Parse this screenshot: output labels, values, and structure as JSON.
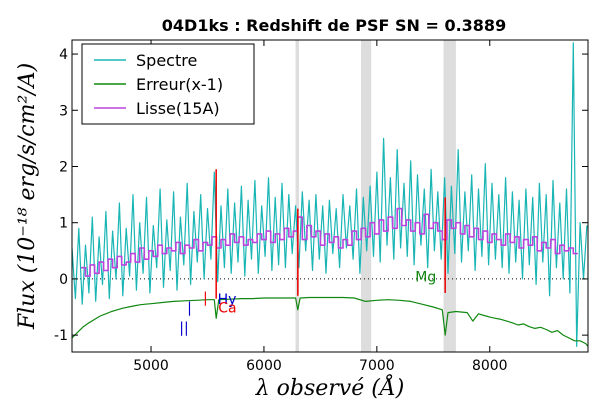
{
  "chart_data": {
    "type": "line",
    "title": "04D1ks : Redshift de PSF SN = 0.3889",
    "xlabel": "λ observé (Å)",
    "ylabel": "Flux (10⁻¹⁸ erg/s/cm²/A)",
    "xlim": [
      4300,
      8870
    ],
    "ylim": [
      -1.3,
      4.25
    ],
    "xticks": [
      5000,
      6000,
      7000,
      8000
    ],
    "yticks": [
      -1,
      0,
      1,
      2,
      3,
      4
    ],
    "xtick_labels": [
      "5000",
      "6000",
      "7000",
      "8000"
    ],
    "ytick_labels": [
      "-1",
      "0",
      "1",
      "2",
      "3",
      "4"
    ],
    "zero_line": {
      "y": 0,
      "style": "dotted",
      "color": "#000000"
    },
    "legend": {
      "placement": "top-left",
      "entries": [
        {
          "label": "Spectre",
          "color": "#19b5b5"
        },
        {
          "label": "Erreur(x-1)",
          "color": "#118811"
        },
        {
          "label": "Lisse(15A)",
          "color": "#bb44dd"
        }
      ]
    },
    "shaded_bands": [
      {
        "x_start": 6280,
        "x_end": 6310,
        "color": "#dddddd"
      },
      {
        "x_start": 6860,
        "x_end": 6950,
        "color": "#dddddd"
      },
      {
        "x_start": 7590,
        "x_end": 7700,
        "color": "#dddddd"
      }
    ],
    "vertical_markers": [
      {
        "x": 5577,
        "y_bottom": -0.35,
        "y_top": 1.95,
        "color": "#ee0000"
      },
      {
        "x": 6300,
        "y_bottom": -0.3,
        "y_top": 1.25,
        "color": "#ee0000"
      },
      {
        "x": 7605,
        "y_bottom": -0.25,
        "y_top": 1.45,
        "color": "#ee0000"
      }
    ],
    "line_labels": [
      {
        "text": "||",
        "x": 5250,
        "y": -0.95,
        "color": "#0000cc"
      },
      {
        "text": "|",
        "x": 5320,
        "y": -0.6,
        "color": "#0000cc"
      },
      {
        "text": "|",
        "x": 5460,
        "y": -0.42,
        "color": "#ee0000"
      },
      {
        "text": "Hy",
        "x": 5590,
        "y": -0.45,
        "color": "#0000cc"
      },
      {
        "text": "Ca",
        "x": 5595,
        "y": -0.6,
        "color": "#ee0000"
      },
      {
        "text": "Mg",
        "x": 7340,
        "y": -0.05,
        "color": "#118811"
      }
    ],
    "series": [
      {
        "name": "Spectre",
        "color": "#19b5b5",
        "x": [
          4300,
          4330,
          4360,
          4390,
          4420,
          4450,
          4480,
          4510,
          4540,
          4570,
          4600,
          4630,
          4660,
          4690,
          4720,
          4750,
          4780,
          4810,
          4840,
          4870,
          4900,
          4930,
          4960,
          4990,
          5020,
          5050,
          5080,
          5110,
          5140,
          5170,
          5200,
          5230,
          5260,
          5290,
          5320,
          5350,
          5380,
          5410,
          5440,
          5470,
          5500,
          5530,
          5560,
          5590,
          5620,
          5650,
          5680,
          5710,
          5740,
          5770,
          5800,
          5830,
          5860,
          5890,
          5920,
          5950,
          5980,
          6010,
          6040,
          6070,
          6100,
          6130,
          6160,
          6190,
          6220,
          6250,
          6280,
          6310,
          6340,
          6370,
          6400,
          6430,
          6460,
          6490,
          6520,
          6550,
          6580,
          6610,
          6640,
          6670,
          6700,
          6730,
          6760,
          6790,
          6820,
          6850,
          6880,
          6910,
          6940,
          6970,
          7000,
          7030,
          7060,
          7090,
          7120,
          7150,
          7180,
          7210,
          7240,
          7270,
          7300,
          7330,
          7360,
          7390,
          7420,
          7450,
          7480,
          7510,
          7540,
          7570,
          7600,
          7630,
          7660,
          7690,
          7720,
          7750,
          7780,
          7810,
          7840,
          7870,
          7900,
          7930,
          7960,
          7990,
          8020,
          8050,
          8080,
          8110,
          8140,
          8170,
          8200,
          8230,
          8260,
          8290,
          8320,
          8350,
          8380,
          8410,
          8440,
          8470,
          8500,
          8530,
          8560,
          8590,
          8620,
          8650,
          8680,
          8710,
          8740,
          8770,
          8800,
          8830,
          8860
        ],
        "y": [
          0.55,
          -0.35,
          0.9,
          -0.45,
          0.6,
          -0.25,
          1.1,
          -0.4,
          0.75,
          -0.1,
          1.2,
          -0.35,
          0.85,
          0.0,
          1.35,
          -0.3,
          0.9,
          0.05,
          1.5,
          -0.2,
          1.0,
          0.1,
          1.45,
          -0.25,
          0.95,
          0.2,
          1.6,
          -0.15,
          1.05,
          0.15,
          1.55,
          -0.2,
          1.1,
          0.25,
          1.7,
          -0.1,
          1.2,
          0.3,
          1.5,
          0.0,
          1.25,
          0.35,
          1.9,
          -0.05,
          1.3,
          0.2,
          1.6,
          0.1,
          1.35,
          0.3,
          1.65,
          0.05,
          1.4,
          0.35,
          1.75,
          0.1,
          1.3,
          0.4,
          1.8,
          0.15,
          1.45,
          0.25,
          1.7,
          0.2,
          1.5,
          0.45,
          1.3,
          0.2,
          1.55,
          0.5,
          1.4,
          0.15,
          1.5,
          0.35,
          1.3,
          0.1,
          1.4,
          0.45,
          1.25,
          0.2,
          1.5,
          0.55,
          1.3,
          0.35,
          1.6,
          0.1,
          1.45,
          0.5,
          1.65,
          0.4,
          1.9,
          0.3,
          2.5,
          0.6,
          1.8,
          0.35,
          2.3,
          0.55,
          1.7,
          0.4,
          2.1,
          0.25,
          1.85,
          0.6,
          1.6,
          0.2,
          1.95,
          0.5,
          1.55,
          0.35,
          1.8,
          0.1,
          1.65,
          0.45,
          2.3,
          0.3,
          1.55,
          0.5,
          1.85,
          0.15,
          1.6,
          0.4,
          2.05,
          0.25,
          1.7,
          0.35,
          1.5,
          0.2,
          1.8,
          0.1,
          1.55,
          0.3,
          1.4,
          0.0,
          1.6,
          0.25,
          1.45,
          -0.1,
          1.7,
          0.3,
          1.5,
          -0.3,
          1.75,
          0.2,
          1.35,
          0.0,
          1.6,
          -0.25,
          4.2,
          -1.2,
          1.0,
          0.0,
          0.95
        ]
      },
      {
        "name": "Erreur(x-1)",
        "color": "#118811",
        "x": [
          4300,
          4350,
          4400,
          4450,
          4500,
          4550,
          4600,
          4650,
          4700,
          4750,
          4800,
          4850,
          4900,
          4950,
          5000,
          5100,
          5200,
          5300,
          5400,
          5500,
          5560,
          5577,
          5600,
          5700,
          5800,
          5900,
          6000,
          6100,
          6200,
          6280,
          6300,
          6320,
          6400,
          6500,
          6600,
          6700,
          6800,
          6900,
          7000,
          7100,
          7200,
          7300,
          7400,
          7500,
          7580,
          7605,
          7630,
          7700,
          7800,
          7850,
          7900,
          7950,
          8000,
          8050,
          8100,
          8150,
          8200,
          8250,
          8300,
          8350,
          8400,
          8450,
          8500,
          8550,
          8600,
          8650,
          8700,
          8750,
          8800,
          8850,
          8870
        ],
        "y": [
          -1.05,
          -0.95,
          -0.85,
          -0.78,
          -0.72,
          -0.66,
          -0.62,
          -0.58,
          -0.55,
          -0.52,
          -0.5,
          -0.48,
          -0.46,
          -0.45,
          -0.44,
          -0.42,
          -0.4,
          -0.39,
          -0.38,
          -0.37,
          -0.37,
          -0.7,
          -0.37,
          -0.36,
          -0.35,
          -0.35,
          -0.34,
          -0.34,
          -0.34,
          -0.34,
          -0.55,
          -0.34,
          -0.33,
          -0.33,
          -0.33,
          -0.33,
          -0.34,
          -0.4,
          -0.38,
          -0.37,
          -0.38,
          -0.4,
          -0.45,
          -0.5,
          -0.55,
          -1.0,
          -0.6,
          -0.58,
          -0.6,
          -0.75,
          -0.62,
          -0.65,
          -0.68,
          -0.7,
          -0.72,
          -0.75,
          -0.78,
          -0.82,
          -0.8,
          -0.85,
          -0.88,
          -0.86,
          -0.9,
          -0.95,
          -0.92,
          -1.0,
          -1.05,
          -1.1,
          -1.1,
          -1.15,
          -1.2
        ]
      },
      {
        "name": "Lisse(15A)",
        "color": "#bb44dd",
        "x": [
          4380,
          4420,
          4460,
          4500,
          4540,
          4580,
          4620,
          4660,
          4700,
          4740,
          4780,
          4820,
          4860,
          4900,
          4940,
          4980,
          5020,
          5060,
          5100,
          5140,
          5180,
          5220,
          5260,
          5300,
          5340,
          5380,
          5420,
          5460,
          5500,
          5540,
          5580,
          5620,
          5660,
          5700,
          5740,
          5780,
          5820,
          5860,
          5900,
          5940,
          5980,
          6020,
          6060,
          6100,
          6140,
          6180,
          6220,
          6260,
          6300,
          6340,
          6380,
          6420,
          6460,
          6500,
          6540,
          6580,
          6620,
          6660,
          6700,
          6740,
          6780,
          6820,
          6860,
          6900,
          6940,
          6980,
          7020,
          7060,
          7100,
          7140,
          7180,
          7220,
          7260,
          7300,
          7340,
          7380,
          7420,
          7460,
          7500,
          7540,
          7580,
          7620,
          7660,
          7700,
          7740,
          7780,
          7820,
          7860,
          7900,
          7940,
          7980,
          8020,
          8060,
          8100,
          8140,
          8180,
          8220,
          8260,
          8300,
          8340,
          8380,
          8420,
          8460,
          8500,
          8540,
          8580,
          8620,
          8660,
          8700,
          8740
        ],
        "y": [
          0.2,
          0.05,
          0.25,
          0.1,
          0.3,
          0.15,
          0.35,
          0.2,
          0.4,
          0.25,
          0.3,
          0.45,
          0.3,
          0.55,
          0.35,
          0.5,
          0.4,
          0.6,
          0.45,
          0.55,
          0.5,
          0.65,
          0.45,
          0.6,
          0.55,
          0.7,
          0.5,
          0.65,
          0.6,
          0.75,
          0.55,
          0.7,
          0.6,
          0.8,
          0.65,
          0.75,
          0.6,
          0.7,
          0.65,
          0.8,
          0.7,
          0.85,
          0.65,
          0.8,
          0.7,
          0.9,
          0.75,
          0.85,
          1.1,
          0.7,
          0.95,
          0.75,
          0.85,
          0.6,
          0.8,
          0.65,
          0.75,
          0.55,
          0.7,
          0.6,
          0.85,
          0.7,
          0.9,
          0.75,
          1.0,
          0.8,
          1.05,
          0.85,
          1.1,
          0.9,
          1.25,
          0.95,
          1.05,
          0.85,
          1.0,
          0.8,
          1.15,
          0.9,
          1.0,
          0.85,
          0.7,
          1.05,
          0.9,
          1.0,
          0.8,
          0.95,
          0.75,
          0.9,
          0.7,
          0.85,
          0.65,
          0.8,
          0.7,
          0.6,
          0.8,
          0.65,
          0.75,
          0.55,
          0.7,
          0.6,
          0.75,
          0.5,
          0.65,
          0.55,
          0.7,
          0.45,
          0.6,
          0.5,
          0.55,
          0.45
        ]
      }
    ]
  }
}
